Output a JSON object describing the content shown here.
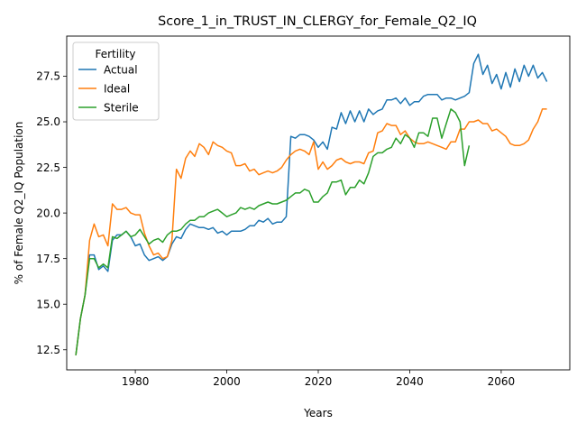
{
  "chart_data": {
    "type": "line",
    "title": "Score_1_in_TRUST_IN_CLERGY_for_Female_Q2_IQ",
    "xlabel": "Years",
    "ylabel": "% of Female Q2_IQ Population",
    "xlim": [
      1965,
      2075
    ],
    "ylim": [
      11.4,
      29.7
    ],
    "xticks": [
      1980,
      2000,
      2020,
      2040,
      2060
    ],
    "yticks": [
      12.5,
      15.0,
      17.5,
      20.0,
      22.5,
      25.0,
      27.5
    ],
    "ytick_labels": [
      "12.5",
      "15.0",
      "17.5",
      "20.0",
      "22.5",
      "25.0",
      "27.5"
    ],
    "grid": false,
    "legend": {
      "title": "Fertility",
      "position": "top-left"
    },
    "series": [
      {
        "name": "Actual",
        "color": "#1f77b4",
        "x": [
          1967,
          1968,
          1969,
          1970,
          1971,
          1972,
          1973,
          1974,
          1975,
          1976,
          1977,
          1978,
          1979,
          1980,
          1981,
          1982,
          1983,
          1984,
          1985,
          1986,
          1987,
          1988,
          1989,
          1990,
          1991,
          1992,
          1993,
          1994,
          1995,
          1996,
          1997,
          1998,
          1999,
          2000,
          2001,
          2002,
          2003,
          2004,
          2005,
          2006,
          2007,
          2008,
          2009,
          2010,
          2011,
          2012,
          2013,
          2014,
          2015,
          2016,
          2017,
          2018,
          2019,
          2020,
          2021,
          2022,
          2023,
          2024,
          2025,
          2026,
          2027,
          2028,
          2029,
          2030,
          2031,
          2032,
          2033,
          2034,
          2035,
          2036,
          2037,
          2038,
          2039,
          2040,
          2041,
          2042,
          2043,
          2044,
          2045,
          2046,
          2047,
          2048,
          2049,
          2050,
          2051,
          2052,
          2053,
          2054,
          2055,
          2056,
          2057,
          2058,
          2059,
          2060,
          2061,
          2062,
          2063,
          2064,
          2065,
          2066,
          2067,
          2068,
          2069,
          2070
        ],
        "y": [
          12.2,
          14.2,
          15.5,
          17.7,
          17.7,
          16.9,
          17.1,
          16.8,
          18.5,
          18.8,
          18.8,
          19.0,
          18.7,
          18.2,
          18.3,
          17.7,
          17.4,
          17.5,
          17.6,
          17.4,
          17.6,
          18.3,
          18.7,
          18.6,
          19.1,
          19.4,
          19.3,
          19.2,
          19.2,
          19.1,
          19.2,
          18.9,
          19.0,
          18.8,
          19.0,
          19.0,
          19.0,
          19.1,
          19.3,
          19.3,
          19.6,
          19.5,
          19.7,
          19.4,
          19.5,
          19.5,
          19.8,
          24.2,
          24.1,
          24.3,
          24.3,
          24.2,
          24.0,
          23.6,
          23.9,
          23.5,
          24.7,
          24.6,
          25.5,
          24.9,
          25.6,
          25.0,
          25.6,
          25.0,
          25.7,
          25.4,
          25.6,
          25.7,
          26.2,
          26.2,
          26.3,
          26.0,
          26.3,
          25.9,
          26.1,
          26.1,
          26.4,
          26.5,
          26.5,
          26.5,
          26.2,
          26.3,
          26.3,
          26.2,
          26.3,
          26.4,
          26.6,
          28.2,
          28.7,
          27.6,
          28.1,
          27.1,
          27.6,
          26.8,
          27.7,
          26.9,
          27.9,
          27.2,
          28.1,
          27.5,
          28.1,
          27.4,
          27.7,
          27.2
        ]
      },
      {
        "name": "Ideal",
        "color": "#ff7f0e",
        "x": [
          1967,
          1968,
          1969,
          1970,
          1971,
          1972,
          1973,
          1974,
          1975,
          1976,
          1977,
          1978,
          1979,
          1980,
          1981,
          1982,
          1983,
          1984,
          1985,
          1986,
          1987,
          1988,
          1989,
          1990,
          1991,
          1992,
          1993,
          1994,
          1995,
          1996,
          1997,
          1998,
          1999,
          2000,
          2001,
          2002,
          2003,
          2004,
          2005,
          2006,
          2007,
          2008,
          2009,
          2010,
          2011,
          2012,
          2013,
          2014,
          2015,
          2016,
          2017,
          2018,
          2019,
          2020,
          2021,
          2022,
          2023,
          2024,
          2025,
          2026,
          2027,
          2028,
          2029,
          2030,
          2031,
          2032,
          2033,
          2034,
          2035,
          2036,
          2037,
          2038,
          2039,
          2040,
          2041,
          2042,
          2043,
          2044,
          2045,
          2046,
          2047,
          2048,
          2049,
          2050,
          2051,
          2052,
          2053,
          2054,
          2055,
          2056,
          2057,
          2058,
          2059,
          2060,
          2061,
          2062,
          2063,
          2064,
          2065,
          2066,
          2067,
          2068,
          2069,
          2070
        ],
        "y": [
          12.2,
          14.2,
          15.5,
          18.5,
          19.4,
          18.7,
          18.8,
          18.2,
          20.5,
          20.2,
          20.2,
          20.3,
          20.0,
          19.9,
          19.9,
          18.9,
          18.2,
          17.7,
          17.8,
          17.5,
          17.6,
          18.5,
          22.4,
          21.9,
          23.0,
          23.4,
          23.1,
          23.8,
          23.6,
          23.2,
          23.9,
          23.7,
          23.6,
          23.4,
          23.3,
          22.6,
          22.6,
          22.7,
          22.3,
          22.4,
          22.1,
          22.2,
          22.3,
          22.2,
          22.3,
          22.5,
          22.9,
          23.2,
          23.4,
          23.5,
          23.4,
          23.2,
          23.9,
          22.4,
          22.8,
          22.4,
          22.6,
          22.9,
          23.0,
          22.8,
          22.7,
          22.8,
          22.8,
          22.7,
          23.3,
          23.4,
          24.4,
          24.5,
          24.9,
          24.8,
          24.8,
          24.3,
          24.5,
          24.1,
          23.9,
          23.8,
          23.8,
          23.9,
          23.8,
          23.7,
          23.6,
          23.5,
          23.9,
          23.9,
          24.6,
          24.6,
          25.0,
          25.0,
          25.1,
          24.9,
          24.9,
          24.5,
          24.6,
          24.4,
          24.2,
          23.8,
          23.7,
          23.7,
          23.8,
          24.0,
          24.6,
          25.0,
          25.7,
          25.7
        ]
      },
      {
        "name": "Sterile",
        "color": "#2ca02c",
        "x": [
          1967,
          1968,
          1969,
          1970,
          1971,
          1972,
          1973,
          1974,
          1975,
          1976,
          1977,
          1978,
          1979,
          1980,
          1981,
          1982,
          1983,
          1984,
          1985,
          1986,
          1987,
          1988,
          1989,
          1990,
          1991,
          1992,
          1993,
          1994,
          1995,
          1996,
          1997,
          1998,
          1999,
          2000,
          2001,
          2002,
          2003,
          2004,
          2005,
          2006,
          2007,
          2008,
          2009,
          2010,
          2011,
          2012,
          2013,
          2014,
          2015,
          2016,
          2017,
          2018,
          2019,
          2020,
          2021,
          2022,
          2023,
          2024,
          2025,
          2026,
          2027,
          2028,
          2029,
          2030,
          2031,
          2032,
          2033,
          2034,
          2035,
          2036,
          2037,
          2038,
          2039,
          2040,
          2041,
          2042,
          2043,
          2044,
          2045,
          2046,
          2047,
          2048,
          2049,
          2050,
          2051,
          2052,
          2053
        ],
        "y": [
          12.2,
          14.2,
          15.5,
          17.5,
          17.5,
          17.0,
          17.2,
          17.0,
          18.7,
          18.6,
          18.8,
          19.0,
          18.7,
          18.8,
          19.1,
          18.7,
          18.3,
          18.5,
          18.6,
          18.4,
          18.8,
          19.0,
          19.0,
          19.1,
          19.4,
          19.6,
          19.6,
          19.8,
          19.8,
          20.0,
          20.1,
          20.2,
          20.0,
          19.8,
          19.9,
          20.0,
          20.3,
          20.2,
          20.3,
          20.2,
          20.4,
          20.5,
          20.6,
          20.5,
          20.5,
          20.6,
          20.7,
          20.9,
          21.1,
          21.1,
          21.3,
          21.2,
          20.6,
          20.6,
          20.9,
          21.1,
          21.7,
          21.7,
          21.8,
          21.0,
          21.4,
          21.4,
          21.8,
          21.6,
          22.2,
          23.1,
          23.3,
          23.3,
          23.5,
          23.6,
          24.1,
          23.8,
          24.3,
          24.1,
          23.6,
          24.4,
          24.4,
          24.2,
          25.2,
          25.2,
          24.1,
          24.9,
          25.7,
          25.5,
          25.0,
          22.6,
          23.7
        ]
      }
    ]
  }
}
